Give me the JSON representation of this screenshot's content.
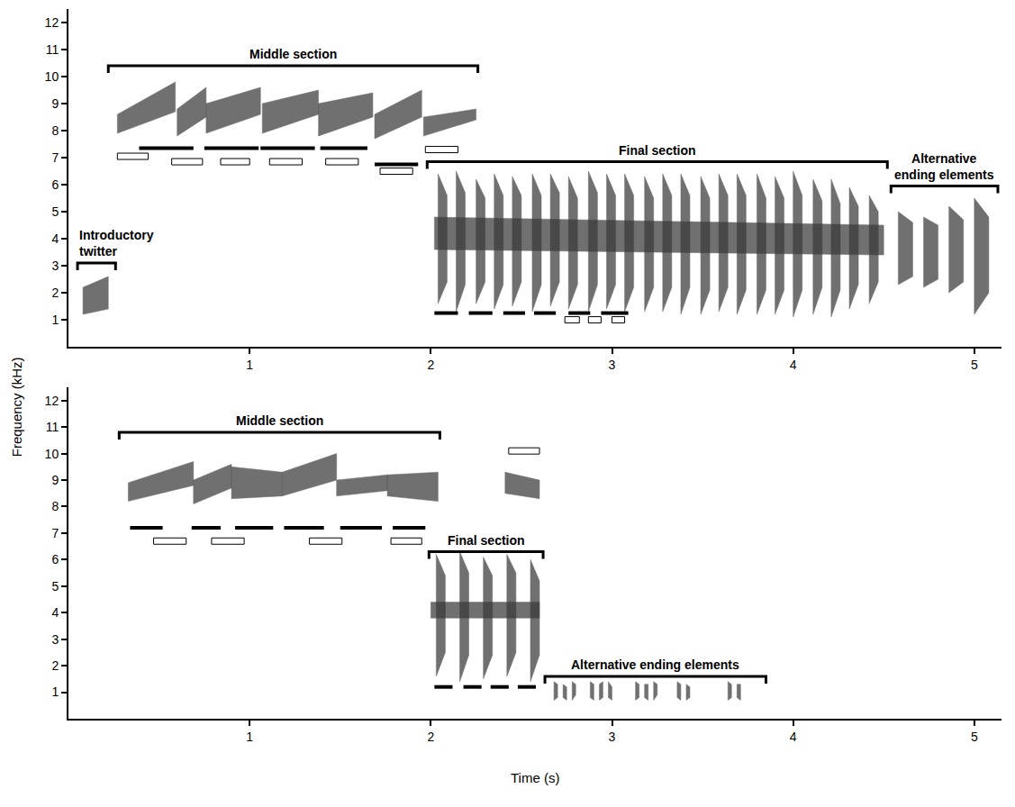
{
  "figure": {
    "xlabel": "Time (s)",
    "ylabel": "Frequency (kHz)"
  },
  "chart_data": [
    {
      "type": "spectrogram",
      "color": "#3a3a3a",
      "xlim": [
        0,
        5.15
      ],
      "xticks": [
        1,
        2,
        3,
        4,
        5
      ],
      "ylim": [
        0,
        12.5
      ],
      "yticks": [
        1,
        2,
        3,
        4,
        5,
        6,
        7,
        8,
        9,
        10,
        11,
        12
      ],
      "elements": [
        [
          0.08,
          0.22,
          1.2,
          2.2,
          1.4,
          2.6
        ],
        [
          0.27,
          0.59,
          7.9,
          8.6,
          8.7,
          9.8
        ],
        [
          0.6,
          0.76,
          7.8,
          8.8,
          8.5,
          9.6
        ],
        [
          0.76,
          1.06,
          7.9,
          9.0,
          8.6,
          9.6
        ],
        [
          1.07,
          1.38,
          7.9,
          9.0,
          8.6,
          9.5
        ],
        [
          1.38,
          1.68,
          7.8,
          9.0,
          8.5,
          9.4
        ],
        [
          1.69,
          1.95,
          7.7,
          8.6,
          8.5,
          9.5
        ],
        [
          1.96,
          2.25,
          7.8,
          8.5,
          8.4,
          8.8
        ],
        [
          2.02,
          4.5,
          3.6,
          4.8,
          3.4,
          4.5
        ],
        [
          2.04,
          2.09,
          1.6,
          6.4,
          2.4,
          5.6
        ],
        [
          2.14,
          2.19,
          1.3,
          6.5,
          2.3,
          5.7
        ],
        [
          2.25,
          2.3,
          1.6,
          6.2,
          2.4,
          5.5
        ],
        [
          2.35,
          2.4,
          1.4,
          6.4,
          2.3,
          5.6
        ],
        [
          2.45,
          2.5,
          1.5,
          6.3,
          2.4,
          5.6
        ],
        [
          2.56,
          2.61,
          1.3,
          6.4,
          2.3,
          5.6
        ],
        [
          2.66,
          2.71,
          1.5,
          6.4,
          2.4,
          5.7
        ],
        [
          2.76,
          2.81,
          1.4,
          6.3,
          2.3,
          5.5
        ],
        [
          2.87,
          2.92,
          1.3,
          6.5,
          2.3,
          5.7
        ],
        [
          2.97,
          3.02,
          1.4,
          6.4,
          2.3,
          5.6
        ],
        [
          3.07,
          3.12,
          1.3,
          6.4,
          2.2,
          5.6
        ],
        [
          3.18,
          3.23,
          1.3,
          6.3,
          2.2,
          5.5
        ],
        [
          3.28,
          3.33,
          1.3,
          6.4,
          2.2,
          5.6
        ],
        [
          3.38,
          3.43,
          1.2,
          6.4,
          2.2,
          5.6
        ],
        [
          3.49,
          3.54,
          1.2,
          6.3,
          2.1,
          5.5
        ],
        [
          3.59,
          3.64,
          1.3,
          6.4,
          2.2,
          5.6
        ],
        [
          3.69,
          3.74,
          1.2,
          6.4,
          2.1,
          5.6
        ],
        [
          3.8,
          3.85,
          1.2,
          6.4,
          2.1,
          5.5
        ],
        [
          3.9,
          3.95,
          1.2,
          6.3,
          2.1,
          5.5
        ],
        [
          4.0,
          4.05,
          1.1,
          6.5,
          2.1,
          5.6
        ],
        [
          4.11,
          4.16,
          1.2,
          6.2,
          2.2,
          5.4
        ],
        [
          4.21,
          4.26,
          1.1,
          6.2,
          2.1,
          5.3
        ],
        [
          4.31,
          4.36,
          1.4,
          5.9,
          2.3,
          5.2
        ],
        [
          4.42,
          4.47,
          1.6,
          5.6,
          2.4,
          5.0
        ],
        [
          4.58,
          4.66,
          2.3,
          5.0,
          2.6,
          4.6
        ],
        [
          4.72,
          4.8,
          2.2,
          4.8,
          2.5,
          4.5
        ],
        [
          4.86,
          4.94,
          2.0,
          5.2,
          2.4,
          4.7
        ],
        [
          5.0,
          5.08,
          1.2,
          5.5,
          2.0,
          4.8
        ]
      ],
      "solid_bars": [
        {
          "t0": 0.39,
          "t1": 0.69,
          "f": 7.35
        },
        {
          "t0": 0.75,
          "t1": 1.05,
          "f": 7.35
        },
        {
          "t0": 1.06,
          "t1": 1.36,
          "f": 7.35
        },
        {
          "t0": 1.39,
          "t1": 1.65,
          "f": 7.35
        },
        {
          "t0": 1.69,
          "t1": 1.93,
          "f": 6.75
        },
        {
          "t0": 2.02,
          "t1": 2.15,
          "f": 1.25
        },
        {
          "t0": 2.21,
          "t1": 2.34,
          "f": 1.25
        },
        {
          "t0": 2.4,
          "t1": 2.52,
          "f": 1.25
        },
        {
          "t0": 2.57,
          "t1": 2.69,
          "f": 1.25
        },
        {
          "t0": 2.76,
          "t1": 2.88,
          "f": 1.25
        },
        {
          "t0": 2.94,
          "t1": 3.09,
          "f": 1.25
        }
      ],
      "open_bars": [
        {
          "t0": 0.27,
          "t1": 0.44,
          "f": 7.05
        },
        {
          "t0": 0.57,
          "t1": 0.74,
          "f": 6.85
        },
        {
          "t0": 0.84,
          "t1": 1.0,
          "f": 6.85
        },
        {
          "t0": 1.11,
          "t1": 1.29,
          "f": 6.85
        },
        {
          "t0": 1.42,
          "t1": 1.6,
          "f": 6.85
        },
        {
          "t0": 1.72,
          "t1": 1.9,
          "f": 6.5
        },
        {
          "t0": 1.97,
          "t1": 2.15,
          "f": 7.3
        },
        {
          "t0": 2.74,
          "t1": 2.82,
          "f": 1.0
        },
        {
          "t0": 2.87,
          "t1": 2.94,
          "f": 1.0
        },
        {
          "t0": 3.0,
          "t1": 3.07,
          "f": 1.0
        }
      ],
      "brackets": [
        {
          "label": "Middle section",
          "t0": 0.22,
          "t1": 2.26,
          "f": 10.4
        },
        {
          "label": "Introductory twitter",
          "t0": 0.05,
          "t1": 0.26,
          "f": 3.1
        },
        {
          "label": "Final section",
          "t0": 1.98,
          "t1": 4.52,
          "f": 6.85
        },
        {
          "label": "Alternative ending elements",
          "t0": 4.54,
          "t1": 5.13,
          "f": 5.95
        }
      ]
    },
    {
      "type": "spectrogram",
      "color": "#3a3a3a",
      "xlim": [
        0,
        5.15
      ],
      "xticks": [
        1,
        2,
        3,
        4,
        5
      ],
      "ylim": [
        0,
        12.5
      ],
      "yticks": [
        1,
        2,
        3,
        4,
        5,
        6,
        7,
        8,
        9,
        10,
        11,
        12
      ],
      "elements": [
        [
          0.33,
          0.69,
          8.2,
          8.9,
          8.8,
          9.7
        ],
        [
          0.69,
          0.9,
          8.1,
          9.0,
          8.7,
          9.6
        ],
        [
          0.9,
          1.18,
          8.3,
          9.5,
          8.4,
          9.3
        ],
        [
          1.18,
          1.48,
          8.4,
          9.3,
          9.0,
          10.0
        ],
        [
          1.48,
          1.76,
          8.4,
          9.0,
          8.6,
          9.2
        ],
        [
          1.76,
          2.04,
          8.4,
          9.2,
          8.2,
          9.3
        ],
        [
          2.41,
          2.6,
          8.5,
          9.3,
          8.3,
          9.0
        ],
        [
          2.0,
          2.6,
          3.8,
          4.4,
          3.8,
          4.4
        ],
        [
          2.03,
          2.08,
          1.6,
          6.2,
          2.5,
          5.4
        ],
        [
          2.16,
          2.21,
          1.4,
          6.3,
          2.4,
          5.5
        ],
        [
          2.29,
          2.34,
          1.5,
          6.1,
          2.4,
          5.4
        ],
        [
          2.42,
          2.47,
          1.6,
          6.2,
          2.5,
          5.5
        ],
        [
          2.55,
          2.6,
          1.4,
          6.0,
          2.4,
          5.2
        ],
        [
          2.68,
          2.7,
          0.7,
          1.4,
          0.8,
          1.3
        ],
        [
          2.73,
          2.75,
          0.8,
          1.3,
          0.7,
          1.2
        ],
        [
          2.78,
          2.8,
          0.7,
          1.4,
          0.9,
          1.3
        ],
        [
          2.88,
          2.9,
          0.8,
          1.4,
          0.7,
          1.3
        ],
        [
          2.93,
          2.95,
          0.7,
          1.3,
          0.8,
          1.4
        ],
        [
          2.98,
          3.0,
          0.8,
          1.4,
          0.7,
          1.2
        ],
        [
          3.13,
          3.15,
          0.7,
          1.4,
          0.8,
          1.3
        ],
        [
          3.18,
          3.2,
          0.8,
          1.3,
          0.7,
          1.3
        ],
        [
          3.23,
          3.25,
          0.7,
          1.4,
          0.9,
          1.3
        ],
        [
          3.36,
          3.38,
          0.8,
          1.4,
          0.7,
          1.3
        ],
        [
          3.41,
          3.43,
          0.7,
          1.3,
          0.8,
          1.2
        ],
        [
          3.64,
          3.66,
          0.7,
          1.4,
          0.8,
          1.3
        ],
        [
          3.69,
          3.71,
          0.8,
          1.3,
          0.7,
          1.3
        ]
      ],
      "solid_bars": [
        {
          "t0": 0.34,
          "t1": 0.52,
          "f": 7.2
        },
        {
          "t0": 0.68,
          "t1": 0.84,
          "f": 7.2
        },
        {
          "t0": 0.92,
          "t1": 1.13,
          "f": 7.2
        },
        {
          "t0": 1.19,
          "t1": 1.41,
          "f": 7.2
        },
        {
          "t0": 1.5,
          "t1": 1.73,
          "f": 7.2
        },
        {
          "t0": 1.79,
          "t1": 1.97,
          "f": 7.2
        },
        {
          "t0": 2.02,
          "t1": 2.12,
          "f": 1.2
        },
        {
          "t0": 2.18,
          "t1": 2.28,
          "f": 1.2
        },
        {
          "t0": 2.33,
          "t1": 2.43,
          "f": 1.2
        },
        {
          "t0": 2.48,
          "t1": 2.58,
          "f": 1.2
        }
      ],
      "open_bars": [
        {
          "t0": 0.47,
          "t1": 0.65,
          "f": 6.7
        },
        {
          "t0": 0.79,
          "t1": 0.97,
          "f": 6.7
        },
        {
          "t0": 1.33,
          "t1": 1.51,
          "f": 6.7
        },
        {
          "t0": 1.78,
          "t1": 1.95,
          "f": 6.7
        },
        {
          "t0": 2.43,
          "t1": 2.6,
          "f": 10.1
        }
      ],
      "brackets": [
        {
          "label": "Middle section",
          "t0": 0.28,
          "t1": 2.05,
          "f": 10.8
        },
        {
          "label": "Final section",
          "t0": 1.99,
          "t1": 2.62,
          "f": 6.3
        },
        {
          "label": "Alternative ending elements",
          "t0": 2.63,
          "t1": 3.85,
          "f": 1.6
        }
      ]
    }
  ]
}
